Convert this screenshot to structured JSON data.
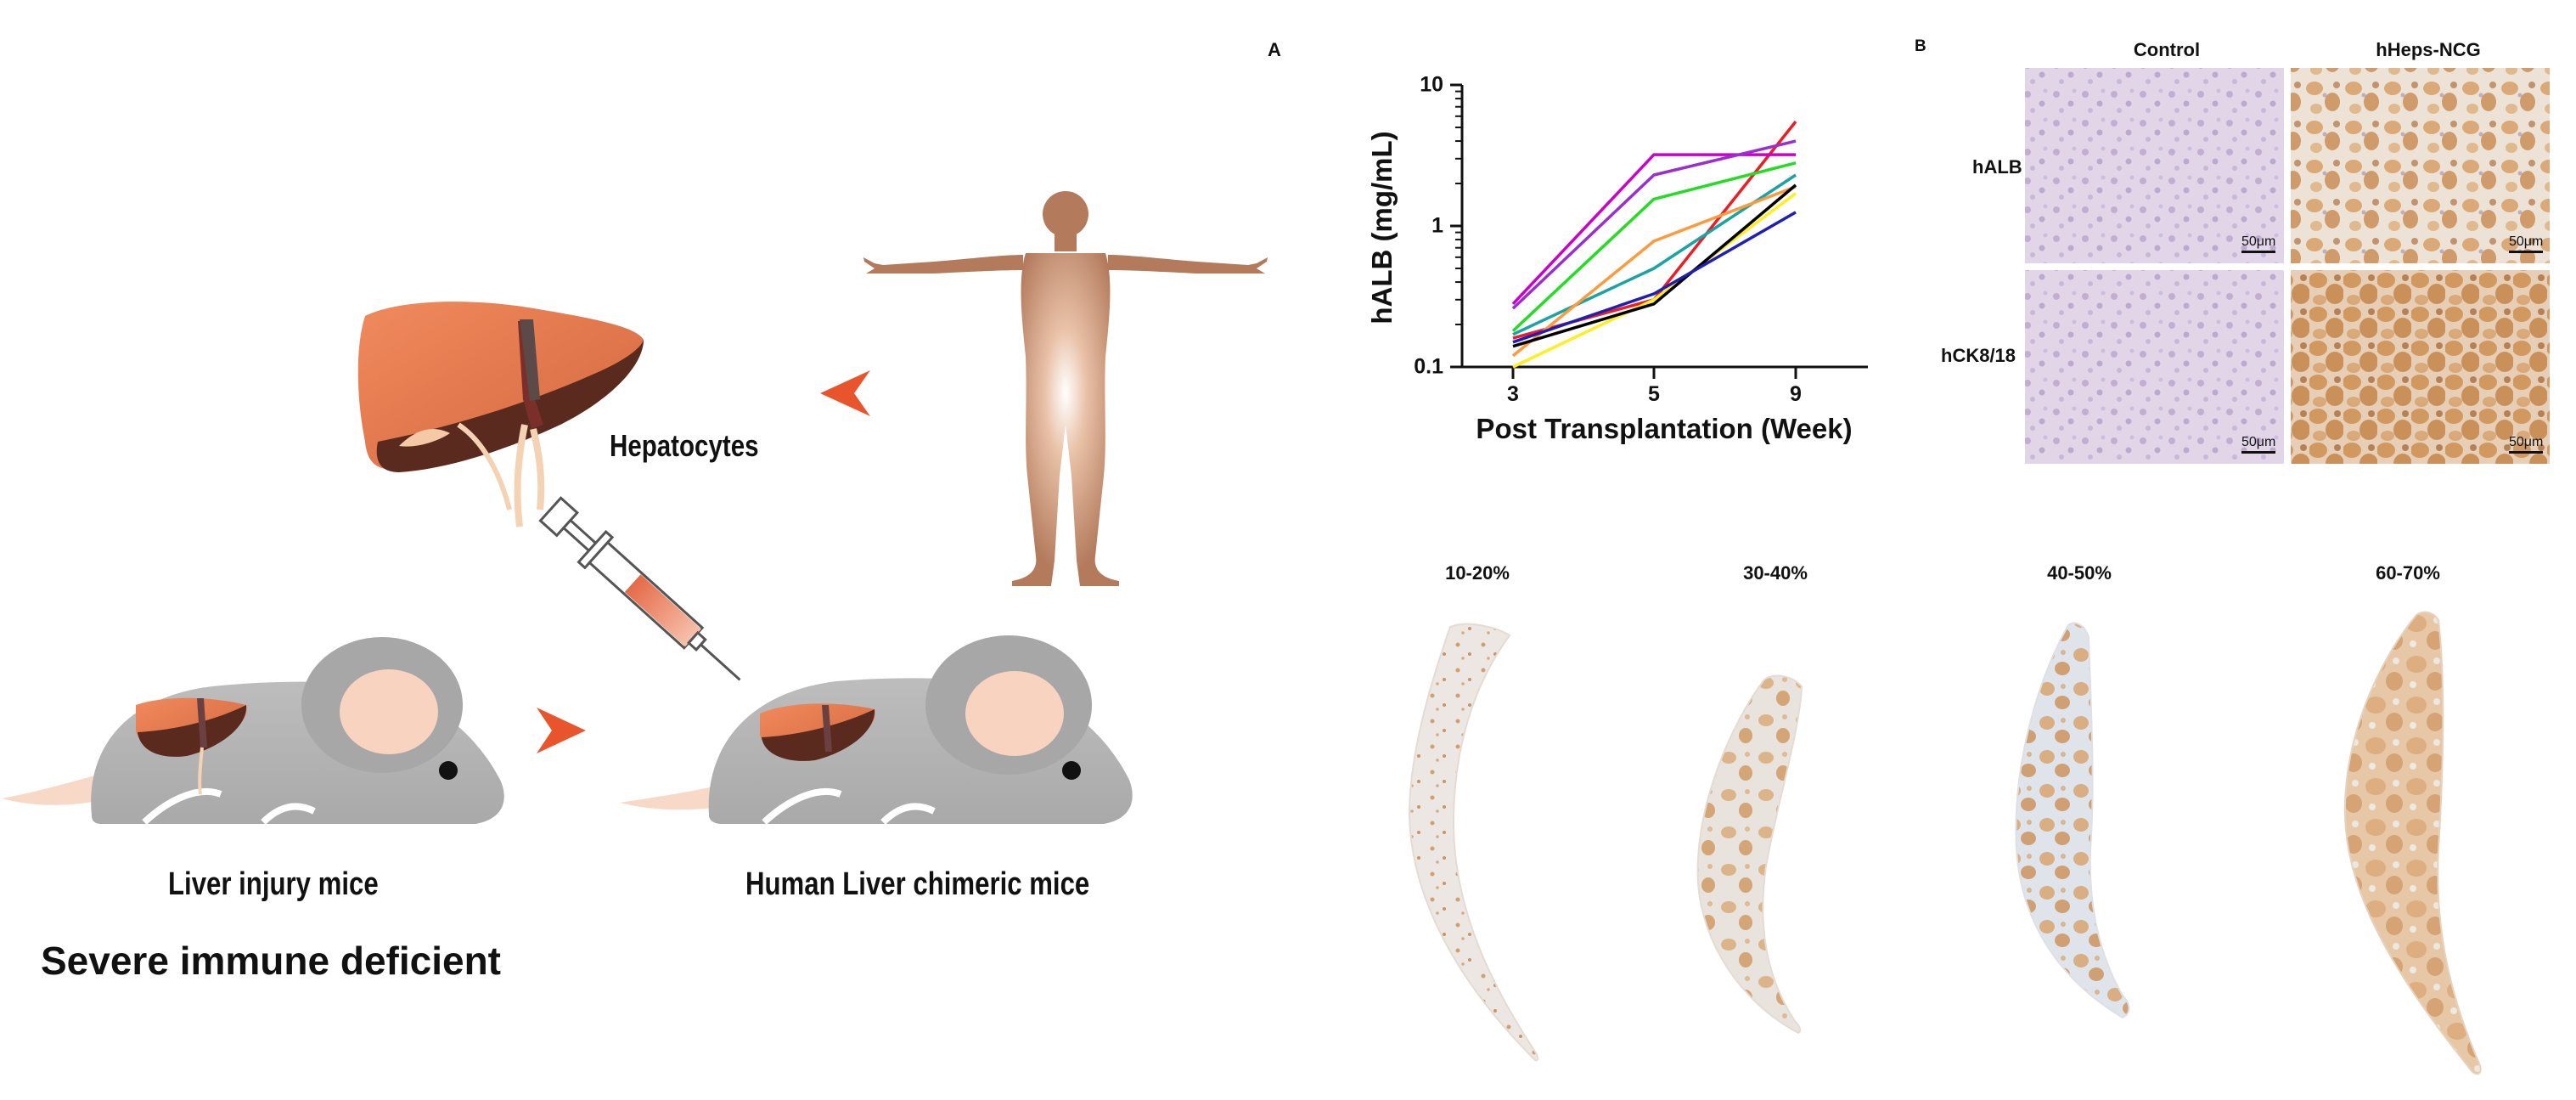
{
  "left": {
    "hepatocytes_label": "Hepatocytes",
    "mouse1_label": "Liver injury mice",
    "mouse2_label": "Human Liver chimeric mice",
    "bottom_caption": "Severe immune deficient"
  },
  "panel_a": {
    "letter": "A"
  },
  "panel_b": {
    "letter": "B",
    "col_headers": [
      "Control",
      "hHeps-NCG"
    ],
    "row_headers": [
      "hALB",
      "hCK8/18"
    ],
    "scale_label": "50μm"
  },
  "sections": {
    "labels": [
      "10-20%",
      "30-40%",
      "40-50%",
      "60-70%"
    ]
  },
  "chart_data": {
    "type": "line",
    "xlabel": "Post Transplantation (Week)",
    "ylabel": "hALB (mg/mL)",
    "y_scale": "log",
    "ylim": [
      0.1,
      10
    ],
    "y_ticks": [
      "0.1",
      "1",
      "10"
    ],
    "x_ticks": [
      "3",
      "5",
      "9"
    ],
    "x": [
      3,
      5,
      9
    ],
    "series": [
      {
        "color": "#ee1c25",
        "values": [
          0.16,
          0.3,
          5.5
        ]
      },
      {
        "color": "#cc00cc",
        "values": [
          0.28,
          3.2,
          3.2
        ]
      },
      {
        "color": "#9a2ed0",
        "values": [
          0.26,
          2.3,
          4.0
        ]
      },
      {
        "color": "#22dd22",
        "values": [
          0.18,
          1.55,
          2.8
        ]
      },
      {
        "color": "#1aa3a3",
        "values": [
          0.17,
          0.5,
          2.3
        ]
      },
      {
        "color": "#ff9a3c",
        "values": [
          0.12,
          0.78,
          1.9
        ]
      },
      {
        "color": "#ffee22",
        "values": [
          0.1,
          0.3,
          1.7
        ]
      },
      {
        "color": "#000000",
        "values": [
          0.14,
          0.28,
          1.95
        ]
      },
      {
        "color": "#1f1fb5",
        "values": [
          0.15,
          0.33,
          1.25
        ]
      }
    ]
  }
}
